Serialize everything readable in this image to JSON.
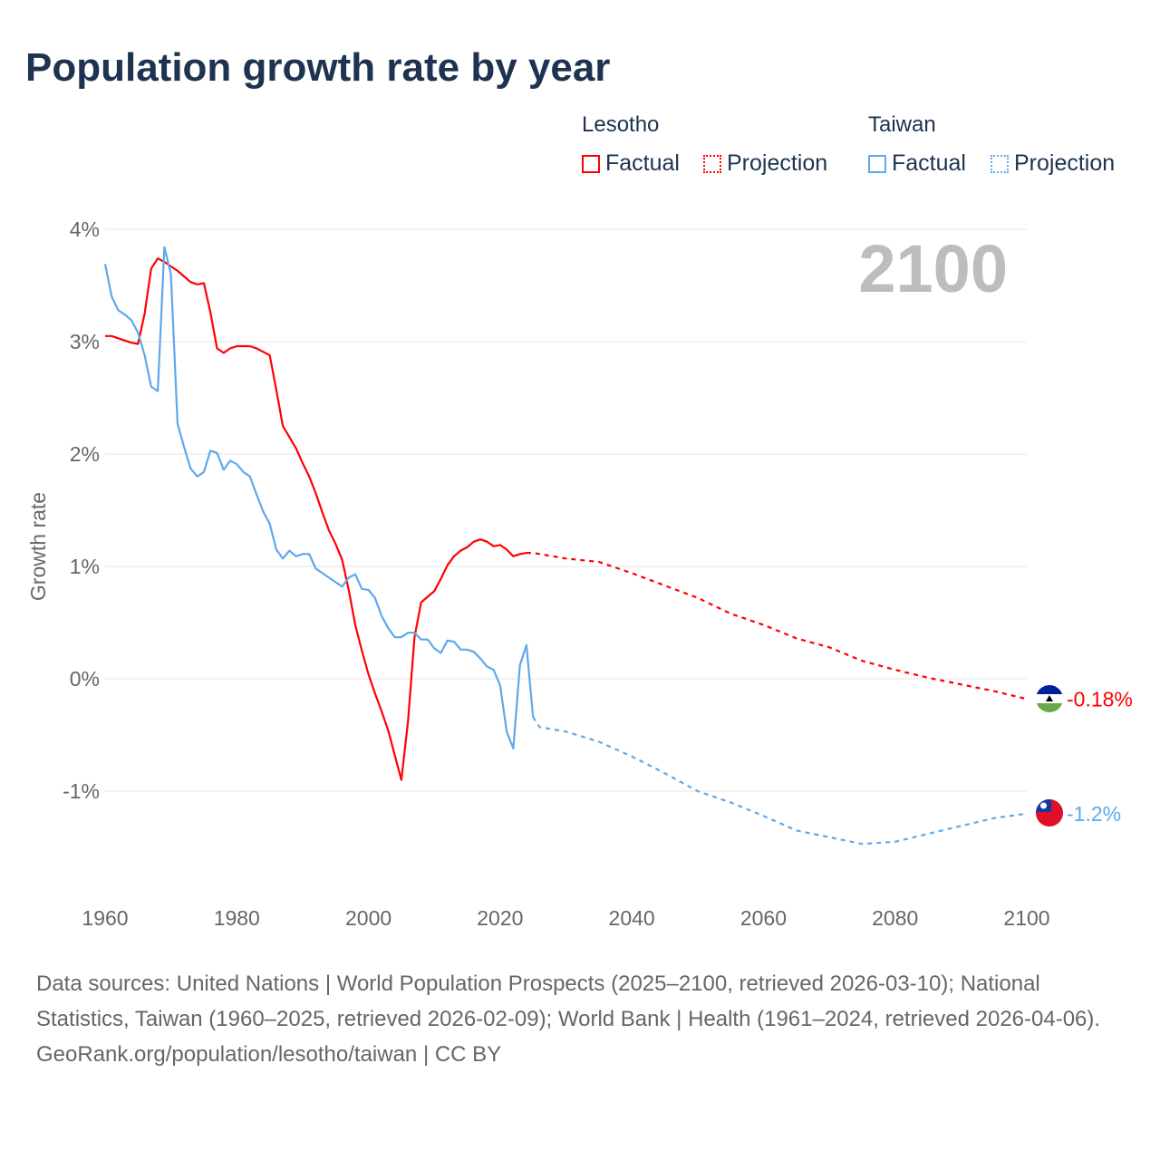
{
  "chart_data": {
    "type": "line",
    "title": "Population growth rate by year",
    "ylabel": "Growth rate",
    "xlabel": "",
    "xlim": [
      1960,
      2100
    ],
    "ylim": [
      -1.9,
      4
    ],
    "xticks": [
      1960,
      1980,
      2000,
      2020,
      2040,
      2060,
      2080,
      2100
    ],
    "xtick_labels": [
      "1960",
      "1980",
      "2000",
      "2020",
      "2040",
      "2060",
      "2080",
      "2100"
    ],
    "yticks": [
      4,
      3,
      2,
      1,
      0,
      -1
    ],
    "ytick_labels": [
      "4%",
      "3%",
      "2%",
      "1%",
      "0%",
      "-1%"
    ],
    "grid": true,
    "year_label": "2100",
    "legend": {
      "placement": "top-right",
      "groups": [
        {
          "name": "Lesotho",
          "color": "#ff0000",
          "items": [
            "Factual",
            "Projection"
          ]
        },
        {
          "name": "Taiwan",
          "color": "#5fa8ea",
          "items": [
            "Factual",
            "Projection"
          ]
        }
      ]
    },
    "series": [
      {
        "name": "Lesotho",
        "color": "#ff0000",
        "end_label": "-0.18%",
        "factual": {
          "x": [
            1960,
            1961,
            1962,
            1963,
            1964,
            1965,
            1966,
            1967,
            1968,
            1969,
            1970,
            1971,
            1972,
            1973,
            1974,
            1975,
            1976,
            1977,
            1978,
            1979,
            1980,
            1981,
            1982,
            1983,
            1984,
            1985,
            1986,
            1987,
            1988,
            1989,
            1990,
            1991,
            1992,
            1993,
            1994,
            1995,
            1996,
            1997,
            1998,
            1999,
            2000,
            2001,
            2002,
            2003,
            2004,
            2005,
            2006,
            2007,
            2008,
            2009,
            2010,
            2011,
            2012,
            2013,
            2014,
            2015,
            2016,
            2017,
            2018,
            2019,
            2020,
            2021,
            2022,
            2023,
            2024
          ],
          "y": [
            3.05,
            3.05,
            3.03,
            3.01,
            2.99,
            2.98,
            3.25,
            3.65,
            3.74,
            3.71,
            3.67,
            3.63,
            3.58,
            3.53,
            3.51,
            3.52,
            3.26,
            2.94,
            2.9,
            2.94,
            2.96,
            2.96,
            2.96,
            2.94,
            2.91,
            2.88,
            2.57,
            2.25,
            2.15,
            2.05,
            1.92,
            1.8,
            1.65,
            1.48,
            1.32,
            1.2,
            1.06,
            0.79,
            0.48,
            0.25,
            0.04,
            -0.13,
            -0.29,
            -0.46,
            -0.68,
            -0.9,
            -0.38,
            0.37,
            0.68,
            0.73,
            0.78,
            0.89,
            1.01,
            1.09,
            1.14,
            1.17,
            1.22,
            1.24,
            1.22,
            1.18,
            1.19,
            1.15,
            1.09,
            1.11,
            1.12
          ]
        },
        "projection": {
          "x": [
            2024,
            2025,
            2030,
            2035,
            2040,
            2045,
            2050,
            2055,
            2060,
            2065,
            2070,
            2075,
            2080,
            2085,
            2090,
            2095,
            2100
          ],
          "y": [
            1.12,
            1.12,
            1.07,
            1.04,
            0.94,
            0.83,
            0.72,
            0.58,
            0.48,
            0.36,
            0.28,
            0.16,
            0.08,
            0.01,
            -0.05,
            -0.11,
            -0.18
          ]
        }
      },
      {
        "name": "Taiwan",
        "color": "#5fa8ea",
        "end_label": "-1.2%",
        "factual": {
          "x": [
            1960,
            1961,
            1962,
            1963,
            1964,
            1965,
            1966,
            1967,
            1968,
            1969,
            1970,
            1971,
            1972,
            1973,
            1974,
            1975,
            1976,
            1977,
            1978,
            1979,
            1980,
            1981,
            1982,
            1983,
            1984,
            1985,
            1986,
            1987,
            1988,
            1989,
            1990,
            1991,
            1992,
            1993,
            1994,
            1995,
            1996,
            1997,
            1998,
            1999,
            2000,
            2001,
            2002,
            2003,
            2004,
            2005,
            2006,
            2007,
            2008,
            2009,
            2010,
            2011,
            2012,
            2013,
            2014,
            2015,
            2016,
            2017,
            2018,
            2019,
            2020,
            2021,
            2022,
            2023,
            2024,
            2025
          ],
          "y": [
            3.69,
            3.4,
            3.28,
            3.24,
            3.19,
            3.08,
            2.88,
            2.6,
            2.56,
            3.84,
            3.6,
            2.27,
            2.06,
            1.87,
            1.8,
            1.84,
            2.03,
            2.01,
            1.86,
            1.94,
            1.91,
            1.84,
            1.8,
            1.64,
            1.49,
            1.38,
            1.15,
            1.07,
            1.14,
            1.09,
            1.11,
            1.11,
            0.98,
            0.94,
            0.9,
            0.86,
            0.82,
            0.9,
            0.93,
            0.8,
            0.79,
            0.72,
            0.56,
            0.45,
            0.37,
            0.37,
            0.41,
            0.41,
            0.35,
            0.35,
            0.27,
            0.23,
            0.34,
            0.33,
            0.26,
            0.26,
            0.24,
            0.18,
            0.11,
            0.08,
            -0.06,
            -0.47,
            -0.62,
            0.12,
            0.3,
            -0.34
          ]
        },
        "projection": {
          "x": [
            2025,
            2026,
            2030,
            2035,
            2040,
            2045,
            2050,
            2055,
            2060,
            2065,
            2070,
            2075,
            2080,
            2085,
            2090,
            2095,
            2100
          ],
          "y": [
            -0.34,
            -0.43,
            -0.47,
            -0.56,
            -0.69,
            -0.84,
            -1.0,
            -1.1,
            -1.22,
            -1.35,
            -1.41,
            -1.47,
            -1.45,
            -1.38,
            -1.31,
            -1.24,
            -1.2
          ]
        }
      }
    ]
  },
  "footer": {
    "sources": "Data sources: United Nations | World Population Prospects (2025–2100, retrieved 2026-03-10); National Statistics, Taiwan (1960–2025, retrieved 2026-02-09); World Bank | Health (1961–2024, retrieved 2026-04-06).",
    "attribution": "GeoRank.org/population/lesotho/taiwan | CC BY"
  }
}
